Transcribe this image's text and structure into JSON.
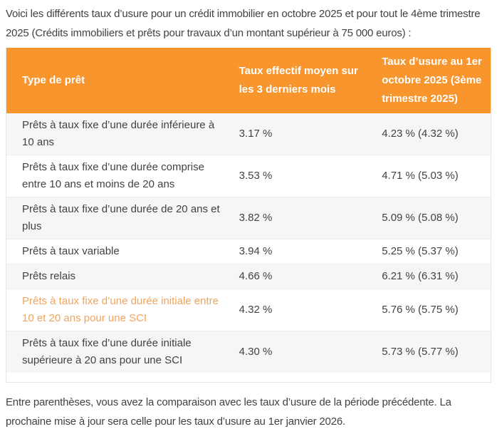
{
  "page": {
    "intro": "Voici les différents taux d’usure pour un crédit immobilier en octobre 2025 et pour tout le 4ème trimestre 2025 (Crédits immobiliers et prêts pour travaux d’un montant supérieur à 75 000 euros) :",
    "footnote": "Entre parenthèses, vous avez la comparaison avec les taux d’usure de la période précédente. La prochaine mise à jour sera celle pour les taux d’usure au 1er janvier 2026."
  },
  "table": {
    "columns": {
      "type": "Type de prêt",
      "avg": "Taux effectif moyen sur les 3 derniers mois",
      "usure": "Taux d’usure au 1er octobre 2025 (3ème trimestre 2025)"
    },
    "rows": [
      {
        "label": "Prêts à taux fixe d’une durée inférieure à 10 ans",
        "avg": "3.17 %",
        "usure": "4.23 % (4.32 %)"
      },
      {
        "label": "Prêts à taux fixe d’une durée comprise entre 10 ans et moins de 20 ans",
        "avg": "3.53 %",
        "usure": "4.71 % (5.03 %)"
      },
      {
        "label": "Prêts à taux fixe d’une durée de 20 ans et plus",
        "avg": "3.82 %",
        "usure": "5.09 % (5.08 %)"
      },
      {
        "label": "Prêts à taux variable",
        "avg": "3.94 %",
        "usure": "5.25 % (5.37 %)"
      },
      {
        "label": "Prêts relais",
        "avg": "4.66 %",
        "usure": "6.21 % (6.31 %)"
      },
      {
        "label": "Prêts à taux fixe d’une durée initiale entre 10 et 20 ans pour une SCI",
        "avg": "4.32 %",
        "usure": "5.76 % (5.75 %)",
        "is_link": true
      },
      {
        "label": "Prêts à taux fixe d’une durée initiale supérieure à 20 ans pour une SCI",
        "avg": "4.30 %",
        "usure": "5.73 % (5.77 %)"
      }
    ]
  },
  "colors": {
    "header-bg": "#F8952D",
    "header-text": "#FFFFFF",
    "row-alt-bg": "#F6F6F6",
    "border-color": "#E7E7E7",
    "row-border": "#EDEDED",
    "text-color": "#424242",
    "link-color": "#F0A55F"
  }
}
